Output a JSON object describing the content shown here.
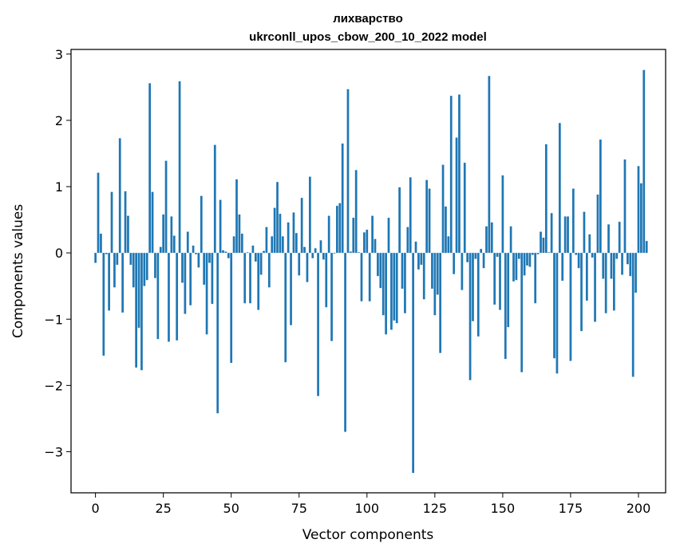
{
  "chart_data": {
    "type": "bar",
    "title": "лихварство",
    "subtitle": "ukrconll_upos_cbow_200_10_2022 model",
    "xlabel": "Vector components",
    "ylabel": "Components values",
    "xlim": [
      -9,
      210
    ],
    "ylim": [
      -3.62,
      3.07
    ],
    "xticks": [
      0,
      25,
      50,
      75,
      100,
      125,
      150,
      175,
      200
    ],
    "yticks": [
      -3,
      -2,
      -1,
      0,
      1,
      2,
      3
    ],
    "grid": false,
    "bar_color": "#1f77b4",
    "values": [
      -0.15,
      1.21,
      0.29,
      -1.55,
      -0.02,
      -0.87,
      0.92,
      -0.52,
      -0.18,
      1.73,
      -0.9,
      0.93,
      0.56,
      -0.18,
      -0.52,
      -1.73,
      -1.13,
      -1.77,
      -0.5,
      -0.41,
      2.56,
      0.92,
      -0.38,
      -1.3,
      0.09,
      0.58,
      1.39,
      -1.34,
      0.55,
      0.26,
      -1.32,
      2.59,
      -0.45,
      -0.92,
      0.32,
      -0.79,
      0.11,
      -0.02,
      -0.22,
      0.86,
      -0.48,
      -1.23,
      -0.15,
      -0.77,
      1.63,
      -2.42,
      0.8,
      0.04,
      0.02,
      -0.08,
      -1.66,
      0.25,
      1.11,
      0.58,
      0.29,
      -0.76,
      0.01,
      -0.76,
      0.11,
      -0.13,
      -0.86,
      -0.33,
      0.03,
      0.39,
      -0.52,
      0.25,
      0.68,
      1.07,
      0.59,
      0.25,
      -1.65,
      0.46,
      -1.09,
      0.61,
      0.3,
      -0.34,
      0.83,
      0.09,
      -0.44,
      1.15,
      -0.08,
      0.07,
      -2.16,
      0.19,
      -0.1,
      -0.82,
      0.56,
      -1.33,
      -0.01,
      0.71,
      0.75,
      1.65,
      -2.7,
      2.47,
      0.02,
      0.53,
      1.25,
      0.01,
      -0.73,
      0.31,
      0.35,
      -0.73,
      0.56,
      0.21,
      -0.35,
      -0.53,
      -0.94,
      -1.23,
      0.53,
      -1.16,
      -1.02,
      -1.06,
      0.99,
      -0.54,
      -0.91,
      0.39,
      1.14,
      -3.32,
      0.17,
      -0.25,
      -0.18,
      -0.7,
      1.1,
      0.97,
      -0.54,
      -0.94,
      -0.63,
      -1.51,
      1.33,
      0.7,
      0.25,
      2.37,
      -0.32,
      1.74,
      2.39,
      -0.56,
      1.36,
      -0.14,
      -1.92,
      -1.03,
      -0.09,
      -1.26,
      0.06,
      -0.23,
      0.4,
      2.67,
      0.46,
      -0.78,
      -0.06,
      -0.86,
      1.17,
      -1.6,
      -1.12,
      0.4,
      -0.43,
      -0.41,
      -0.09,
      -1.8,
      -0.34,
      -0.19,
      -0.21,
      -0.03,
      -0.76,
      -0.02,
      0.32,
      0.23,
      1.64,
      0.01,
      0.6,
      -1.59,
      -1.82,
      1.96,
      -0.42,
      0.55,
      0.55,
      -1.63,
      0.97,
      -0.03,
      -0.23,
      -1.18,
      0.62,
      -0.72,
      0.28,
      -0.07,
      -1.04,
      0.88,
      1.71,
      -0.39,
      -0.91,
      0.43,
      -0.39,
      -0.87,
      -0.09,
      0.47,
      -0.33,
      1.41,
      -0.17,
      -0.35,
      -1.87,
      -0.6,
      1.31,
      1.05,
      2.76,
      0.18
    ]
  }
}
